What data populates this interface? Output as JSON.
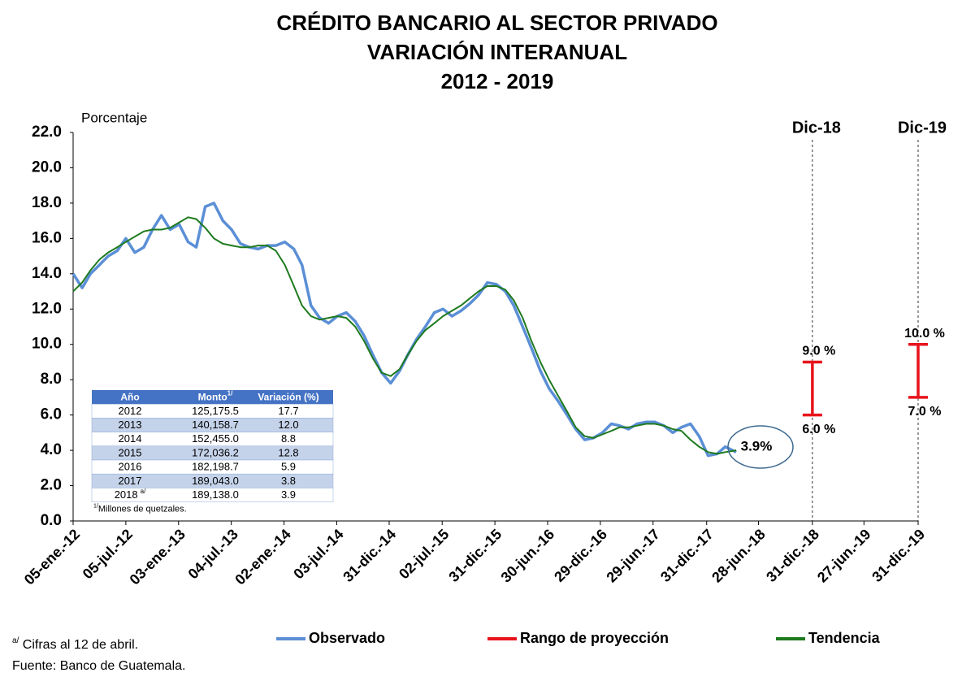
{
  "chart_data": {
    "type": "line",
    "title": [
      "CRÉDITO BANCARIO AL SECTOR PRIVADO",
      "VARIACIÓN INTERANUAL",
      "2012 - 2019"
    ],
    "y_label": "Porcentaje",
    "xlim": [
      "2012-01-05",
      "2019-12-31"
    ],
    "xticks": [
      {
        "value": "2012-01-05",
        "label": "05-ene.-12"
      },
      {
        "value": "2012-07-05",
        "label": "05-jul.-12"
      },
      {
        "value": "2013-01-03",
        "label": "03-ene.-13"
      },
      {
        "value": "2013-07-04",
        "label": "04-jul.-13"
      },
      {
        "value": "2014-01-02",
        "label": "02-ene.-14"
      },
      {
        "value": "2014-07-03",
        "label": "03-jul.-14"
      },
      {
        "value": "2014-12-31",
        "label": "31-dic.-14"
      },
      {
        "value": "2015-07-02",
        "label": "02-jul.-15"
      },
      {
        "value": "2015-12-31",
        "label": "31-dic.-15"
      },
      {
        "value": "2016-06-30",
        "label": "30-jun.-16"
      },
      {
        "value": "2016-12-29",
        "label": "29-dic.-16"
      },
      {
        "value": "2017-06-29",
        "label": "29-jun.-17"
      },
      {
        "value": "2017-12-31",
        "label": "31-dic.-17"
      },
      {
        "value": "2018-06-28",
        "label": "28-jun.-18"
      },
      {
        "value": "2018-12-31",
        "label": "31-dic.-18"
      },
      {
        "value": "2019-06-27",
        "label": "27-jun.-19"
      },
      {
        "value": "2019-12-31",
        "label": "31-dic.-19"
      }
    ],
    "ylim": [
      0,
      22
    ],
    "yticks": [
      {
        "value": 0,
        "label": "0.0"
      },
      {
        "value": 2,
        "label": "2.0"
      },
      {
        "value": 4,
        "label": "4.0"
      },
      {
        "value": 6,
        "label": "6.0"
      },
      {
        "value": 8,
        "label": "8.0"
      },
      {
        "value": 10,
        "label": "10.0"
      },
      {
        "value": 12,
        "label": "12.0"
      },
      {
        "value": 14,
        "label": "14.0"
      },
      {
        "value": 16,
        "label": "16.0"
      },
      {
        "value": 18,
        "label": "18.0"
      },
      {
        "value": 20,
        "label": "20.0"
      },
      {
        "value": 22,
        "label": "22.0"
      }
    ],
    "grid": false,
    "x": [
      "2012-01-05",
      "2012-02-05",
      "2012-03-05",
      "2012-04-05",
      "2012-05-05",
      "2012-06-05",
      "2012-07-05",
      "2012-08-05",
      "2012-09-05",
      "2012-10-05",
      "2012-11-05",
      "2012-12-05",
      "2013-01-05",
      "2013-02-05",
      "2013-03-05",
      "2013-04-05",
      "2013-05-05",
      "2013-06-05",
      "2013-07-05",
      "2013-08-05",
      "2013-09-05",
      "2013-10-05",
      "2013-11-05",
      "2013-12-05",
      "2014-01-05",
      "2014-02-05",
      "2014-03-05",
      "2014-04-05",
      "2014-05-05",
      "2014-06-05",
      "2014-07-05",
      "2014-08-05",
      "2014-09-05",
      "2014-10-05",
      "2014-11-05",
      "2014-12-05",
      "2015-01-05",
      "2015-02-05",
      "2015-03-05",
      "2015-04-05",
      "2015-05-05",
      "2015-06-05",
      "2015-07-05",
      "2015-08-05",
      "2015-09-05",
      "2015-10-05",
      "2015-11-05",
      "2015-12-05",
      "2016-01-05",
      "2016-02-05",
      "2016-03-05",
      "2016-04-05",
      "2016-05-05",
      "2016-06-05",
      "2016-07-05",
      "2016-08-05",
      "2016-09-05",
      "2016-10-05",
      "2016-11-05",
      "2016-12-05",
      "2017-01-05",
      "2017-02-05",
      "2017-03-05",
      "2017-04-05",
      "2017-05-05",
      "2017-06-05",
      "2017-07-05",
      "2017-08-05",
      "2017-09-05",
      "2017-10-05",
      "2017-11-05",
      "2017-12-05",
      "2018-01-05",
      "2018-02-05",
      "2018-03-05",
      "2018-04-12"
    ],
    "series": [
      {
        "name": "Observado",
        "color": "#5b8fd6",
        "width": 3.5,
        "values": [
          14.0,
          13.2,
          14.0,
          14.5,
          15.0,
          15.3,
          16.0,
          15.2,
          15.5,
          16.5,
          17.3,
          16.5,
          16.8,
          15.8,
          15.5,
          17.8,
          18.0,
          17.0,
          16.5,
          15.7,
          15.5,
          15.4,
          15.6,
          15.6,
          15.8,
          15.4,
          14.5,
          12.2,
          11.5,
          11.2,
          11.6,
          11.8,
          11.3,
          10.5,
          9.4,
          8.4,
          7.8,
          8.5,
          9.4,
          10.3,
          11.0,
          11.8,
          12.0,
          11.6,
          11.9,
          12.3,
          12.8,
          13.5,
          13.4,
          13.0,
          12.2,
          11.0,
          9.8,
          8.5,
          7.5,
          6.8,
          6.0,
          5.2,
          4.6,
          4.7,
          5.0,
          5.5,
          5.4,
          5.2,
          5.5,
          5.6,
          5.6,
          5.4,
          5.0,
          5.3,
          5.5,
          4.8,
          3.7,
          3.8,
          4.2,
          3.9
        ]
      },
      {
        "name": "Tendencia",
        "color": "#1e7a1e",
        "width": 2,
        "values": [
          13.0,
          13.5,
          14.2,
          14.8,
          15.2,
          15.5,
          15.8,
          16.1,
          16.4,
          16.5,
          16.5,
          16.6,
          16.9,
          17.2,
          17.1,
          16.6,
          16.0,
          15.7,
          15.6,
          15.5,
          15.5,
          15.6,
          15.6,
          15.3,
          14.5,
          13.3,
          12.2,
          11.6,
          11.4,
          11.5,
          11.6,
          11.5,
          11.0,
          10.2,
          9.2,
          8.4,
          8.2,
          8.6,
          9.4,
          10.2,
          10.8,
          11.2,
          11.6,
          11.9,
          12.2,
          12.6,
          13.0,
          13.3,
          13.3,
          13.1,
          12.5,
          11.5,
          10.2,
          9.0,
          8.0,
          7.1,
          6.2,
          5.3,
          4.8,
          4.7,
          4.9,
          5.1,
          5.3,
          5.3,
          5.4,
          5.5,
          5.5,
          5.4,
          5.2,
          5.1,
          4.6,
          4.2,
          3.9,
          3.8,
          3.9,
          4.0
        ]
      }
    ],
    "range": {
      "name": "Rango de proyección",
      "color": "#e8141c",
      "x": [
        "2018-12-31",
        "2019-12-31"
      ],
      "period_labels": [
        "Dic-18",
        "Dic-19"
      ],
      "low": [
        6.0,
        7.0
      ],
      "high": [
        9.0,
        10.0
      ],
      "low_labels": [
        "6.0 %",
        "7.0 %"
      ],
      "high_labels": [
        "9.0 %",
        "10.0 %"
      ]
    },
    "callout": "3.9%",
    "legend_order": [
      "Observado",
      "Rango de proyección",
      "Tendencia"
    ],
    "table": {
      "header": [
        {
          "text": "Año"
        },
        {
          "text": "Monto",
          "sup": "1/"
        },
        {
          "text": "Variación (%)"
        }
      ],
      "rows": [
        {
          "cells": [
            "2012",
            "125,175.5",
            "17.7"
          ]
        },
        {
          "cells": [
            "2013",
            "140,158.7",
            "12.0"
          ]
        },
        {
          "cells": [
            "2014",
            "152,455.0",
            "8.8"
          ]
        },
        {
          "cells": [
            "2015",
            "172,036.2",
            "12.8"
          ]
        },
        {
          "cells": [
            "2016",
            "182,198.7",
            "5.9"
          ]
        },
        {
          "cells": [
            "2017",
            "189,043.0",
            "3.8"
          ]
        },
        {
          "cells": [
            "2018",
            "189,138.0",
            "3.9"
          ],
          "sup": "a/"
        }
      ],
      "note": {
        "sup": "1/",
        "text": "Millones de quetzales."
      }
    },
    "footnotes": [
      {
        "sup": "a/",
        "text": " Cifras al 12 de abril."
      },
      {
        "text": "Fuente: Banco de Guatemala."
      }
    ]
  }
}
